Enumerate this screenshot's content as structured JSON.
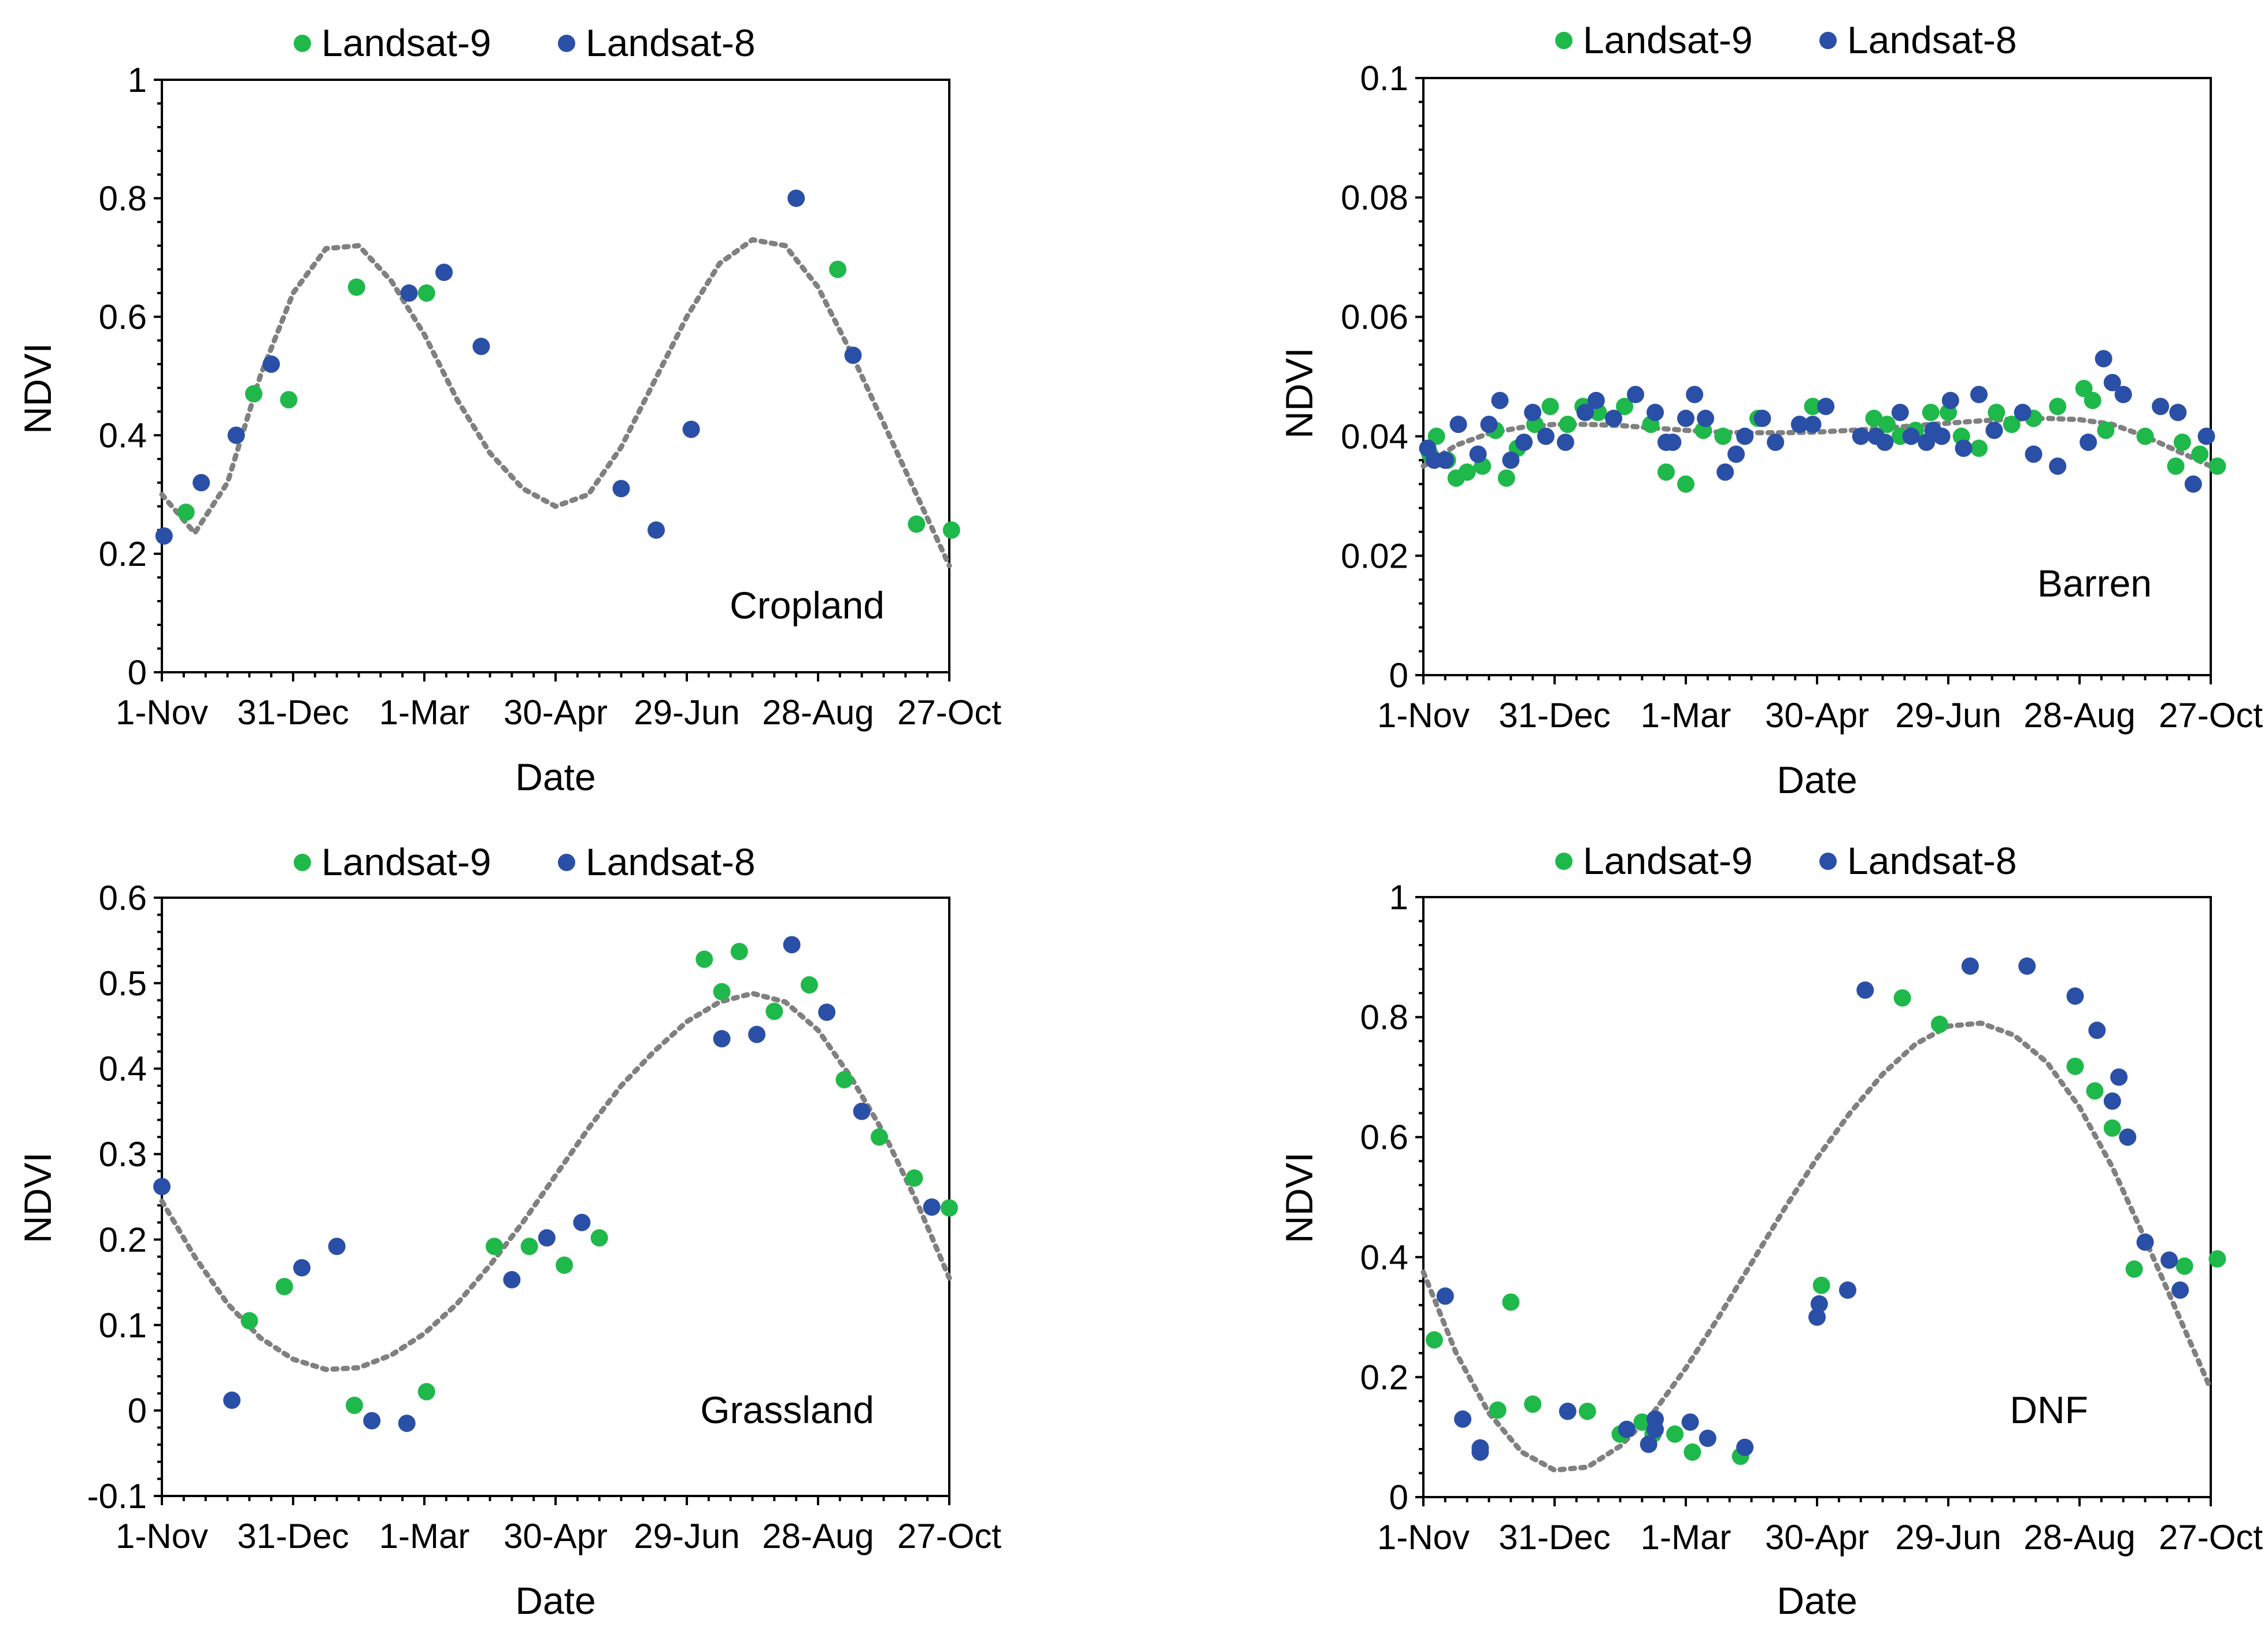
{
  "colors": {
    "landsat9": "#1fb84a",
    "landsat8": "#2a4fa6",
    "trend": "#808080",
    "axis": "#000000"
  },
  "chart_data": [
    {
      "type": "scatter",
      "label": "Cropland",
      "xlabel": "Date",
      "ylabel": "NDVI",
      "grid": false,
      "legend": [
        "Landsat-9",
        "Landsat-8"
      ],
      "legend_position": "top-center",
      "x_ticks": [
        "1-Nov",
        "31-Dec",
        "1-Mar",
        "30-Apr",
        "29-Jun",
        "28-Aug",
        "27-Oct"
      ],
      "xlim": [
        0,
        360
      ],
      "ylim": [
        0,
        1
      ],
      "y_ticks": [
        "0",
        "0.2",
        "0.4",
        "0.6",
        "0.8",
        "1"
      ],
      "series": [
        {
          "name": "Landsat-9",
          "x": [
            11,
            42,
            58,
            89,
            121,
            309,
            345,
            361
          ],
          "y": [
            0.27,
            0.47,
            0.46,
            0.65,
            0.64,
            0.68,
            0.25,
            0.24
          ]
        },
        {
          "name": "Landsat-8",
          "x": [
            1,
            18,
            34,
            50,
            113,
            129,
            146,
            210,
            226,
            242,
            290,
            316
          ],
          "y": [
            0.23,
            0.32,
            0.4,
            0.52,
            0.64,
            0.675,
            0.55,
            0.31,
            0.24,
            0.41,
            0.8,
            0.535
          ]
        }
      ],
      "trendline": {
        "x": [
          0,
          15,
          30,
          45,
          60,
          75,
          90,
          105,
          120,
          135,
          150,
          165,
          180,
          195,
          210,
          225,
          240,
          255,
          270,
          285,
          300,
          315,
          330,
          345,
          360
        ],
        "y": [
          0.3,
          0.235,
          0.32,
          0.5,
          0.64,
          0.715,
          0.72,
          0.66,
          0.57,
          0.46,
          0.37,
          0.31,
          0.28,
          0.3,
          0.38,
          0.49,
          0.6,
          0.69,
          0.73,
          0.72,
          0.65,
          0.54,
          0.42,
          0.3,
          0.18
        ]
      }
    },
    {
      "type": "scatter",
      "label": "Barren",
      "xlabel": "Date",
      "ylabel": "NDVI",
      "grid": false,
      "legend": [
        "Landsat-9",
        "Landsat-8"
      ],
      "legend_position": "top-center",
      "x_ticks": [
        "1-Nov",
        "31-Dec",
        "1-Mar",
        "30-Apr",
        "29-Jun",
        "28-Aug",
        "27-Oct"
      ],
      "xlim": [
        0,
        360
      ],
      "ylim": [
        0,
        0.1
      ],
      "y_ticks": [
        "0",
        "0.02",
        "0.04",
        "0.06",
        "0.08",
        "0.1"
      ],
      "series": [
        {
          "name": "Landsat-9",
          "x": [
            3,
            6,
            11,
            15,
            20,
            27,
            33,
            38,
            43,
            51,
            58,
            66,
            73,
            80,
            92,
            104,
            111,
            120,
            128,
            137,
            153,
            178,
            206,
            212,
            218,
            225,
            232,
            240,
            246,
            254,
            262,
            269,
            279,
            290,
            302,
            306,
            312,
            330,
            344,
            347,
            355,
            363
          ],
          "y": [
            0.037,
            0.04,
            0.036,
            0.033,
            0.034,
            0.035,
            0.041,
            0.033,
            0.038,
            0.042,
            0.045,
            0.042,
            0.045,
            0.044,
            0.045,
            0.042,
            0.034,
            0.032,
            0.041,
            0.04,
            0.043,
            0.045,
            0.043,
            0.042,
            0.04,
            0.041,
            0.044,
            0.044,
            0.04,
            0.038,
            0.044,
            0.042,
            0.043,
            0.045,
            0.048,
            0.046,
            0.041,
            0.04,
            0.035,
            0.039,
            0.037,
            0.035
          ]
        },
        {
          "name": "Landsat-8",
          "x": [
            2,
            5,
            10,
            16,
            25,
            30,
            35,
            40,
            46,
            50,
            56,
            65,
            74,
            79,
            87,
            97,
            106,
            111,
            114,
            120,
            124,
            129,
            138,
            143,
            147,
            155,
            161,
            172,
            178,
            184,
            200,
            207,
            211,
            218,
            223,
            230,
            233,
            237,
            241,
            247,
            254,
            261,
            274,
            279,
            290,
            304,
            311,
            315,
            320,
            337,
            345,
            352,
            358
          ],
          "y": [
            0.038,
            0.036,
            0.036,
            0.042,
            0.037,
            0.042,
            0.046,
            0.036,
            0.039,
            0.044,
            0.04,
            0.039,
            0.044,
            0.046,
            0.043,
            0.047,
            0.044,
            0.039,
            0.039,
            0.043,
            0.047,
            0.043,
            0.034,
            0.037,
            0.04,
            0.043,
            0.039,
            0.042,
            0.042,
            0.045,
            0.04,
            0.04,
            0.039,
            0.044,
            0.04,
            0.039,
            0.041,
            0.04,
            0.046,
            0.038,
            0.047,
            0.041,
            0.044,
            0.037,
            0.035,
            0.039,
            0.053,
            0.049,
            0.047,
            0.045,
            0.044,
            0.032,
            0.04
          ]
        }
      ],
      "trendline": {
        "x": [
          0,
          15,
          30,
          45,
          60,
          75,
          90,
          105,
          120,
          135,
          150,
          165,
          180,
          195,
          210,
          225,
          240,
          255,
          270,
          285,
          300,
          315,
          330,
          345,
          360
        ],
        "y": [
          0.035,
          0.0385,
          0.0405,
          0.0415,
          0.042,
          0.042,
          0.0418,
          0.0414,
          0.041,
          0.0407,
          0.0406,
          0.0406,
          0.0407,
          0.041,
          0.0413,
          0.0418,
          0.0422,
          0.0426,
          0.0429,
          0.043,
          0.0428,
          0.042,
          0.04,
          0.0375,
          0.035
        ]
      }
    },
    {
      "type": "scatter",
      "label": "Grassland",
      "xlabel": "Date",
      "ylabel": "NDVI",
      "grid": false,
      "legend": [
        "Landsat-9",
        "Landsat-8"
      ],
      "legend_position": "top-center",
      "x_ticks": [
        "1-Nov",
        "31-Dec",
        "1-Mar",
        "30-Apr",
        "29-Jun",
        "28-Aug",
        "27-Oct"
      ],
      "xlim": [
        0,
        360
      ],
      "ylim": [
        -0.1,
        0.6
      ],
      "y_ticks": [
        "-0.1",
        "0",
        "0.1",
        "0.2",
        "0.3",
        "0.4",
        "0.5",
        "0.6"
      ],
      "series": [
        {
          "name": "Landsat-9",
          "x": [
            40,
            56,
            88,
            121,
            152,
            168,
            184,
            200,
            248,
            256,
            264,
            280,
            296,
            312,
            328,
            344,
            360
          ],
          "y": [
            0.105,
            0.145,
            0.006,
            0.022,
            0.192,
            0.192,
            0.17,
            0.202,
            0.528,
            0.49,
            0.537,
            0.467,
            0.498,
            0.387,
            0.32,
            0.272,
            0.237
          ]
        },
        {
          "name": "Landsat-8",
          "x": [
            0,
            32,
            64,
            80,
            96,
            112,
            160,
            176,
            192,
            256,
            272,
            288,
            304,
            320,
            352
          ],
          "y": [
            0.262,
            0.012,
            0.167,
            0.192,
            -0.012,
            -0.015,
            0.153,
            0.202,
            0.22,
            0.435,
            0.44,
            0.545,
            0.466,
            0.35,
            0.238
          ]
        }
      ],
      "trendline": {
        "x": [
          0,
          15,
          30,
          45,
          60,
          75,
          90,
          105,
          120,
          135,
          150,
          165,
          180,
          195,
          210,
          225,
          240,
          255,
          270,
          285,
          300,
          315,
          330,
          345,
          360
        ],
        "y": [
          0.245,
          0.18,
          0.125,
          0.085,
          0.06,
          0.048,
          0.05,
          0.065,
          0.09,
          0.125,
          0.17,
          0.22,
          0.275,
          0.33,
          0.38,
          0.42,
          0.455,
          0.478,
          0.488,
          0.478,
          0.445,
          0.39,
          0.325,
          0.245,
          0.155
        ]
      }
    },
    {
      "type": "scatter",
      "label": "DNF",
      "xlabel": "Date",
      "ylabel": "NDVI",
      "grid": false,
      "legend": [
        "Landsat-9",
        "Landsat-8"
      ],
      "legend_position": "top-center",
      "x_ticks": [
        "1-Nov",
        "31-Dec",
        "1-Mar",
        "30-Apr",
        "29-Jun",
        "28-Aug",
        "27-Oct"
      ],
      "xlim": [
        0,
        360
      ],
      "ylim": [
        0,
        1
      ],
      "y_ticks": [
        "0",
        "0.2",
        "0.4",
        "0.6",
        "0.8",
        "1"
      ],
      "series": [
        {
          "name": "Landsat-9",
          "x": [
            5,
            34,
            40,
            50,
            66,
            75,
            90,
            100,
            105,
            115,
            123,
            145,
            182,
            219,
            236,
            298,
            307,
            315,
            325,
            348,
            363
          ],
          "y": [
            0.262,
            0.145,
            0.325,
            0.155,
            0.143,
            0.143,
            0.105,
            0.125,
            0.105,
            0.105,
            0.075,
            0.068,
            0.353,
            0.832,
            0.788,
            0.718,
            0.677,
            0.615,
            0.38,
            0.385,
            0.397
          ]
        },
        {
          "name": "Landsat-8",
          "x": [
            10,
            18,
            26,
            26,
            66,
            93,
            103,
            106,
            106,
            122,
            130,
            147,
            180,
            181,
            194,
            202,
            250,
            276,
            298,
            308,
            315,
            318,
            322,
            330,
            341,
            346
          ],
          "y": [
            0.335,
            0.13,
            0.082,
            0.075,
            0.143,
            0.113,
            0.088,
            0.113,
            0.13,
            0.125,
            0.098,
            0.083,
            0.3,
            0.322,
            0.345,
            0.845,
            0.885,
            0.885,
            0.835,
            0.778,
            0.66,
            0.7,
            0.6,
            0.425,
            0.395,
            0.345
          ]
        }
      ],
      "trendline": {
        "x": [
          0,
          15,
          30,
          45,
          60,
          75,
          90,
          105,
          120,
          135,
          150,
          165,
          180,
          195,
          210,
          225,
          240,
          255,
          270,
          285,
          300,
          315,
          330,
          345,
          360
        ],
        "y": [
          0.375,
          0.24,
          0.14,
          0.075,
          0.045,
          0.05,
          0.085,
          0.14,
          0.215,
          0.3,
          0.39,
          0.48,
          0.565,
          0.64,
          0.705,
          0.755,
          0.785,
          0.79,
          0.77,
          0.725,
          0.65,
          0.55,
          0.43,
          0.305,
          0.18
        ]
      }
    }
  ]
}
